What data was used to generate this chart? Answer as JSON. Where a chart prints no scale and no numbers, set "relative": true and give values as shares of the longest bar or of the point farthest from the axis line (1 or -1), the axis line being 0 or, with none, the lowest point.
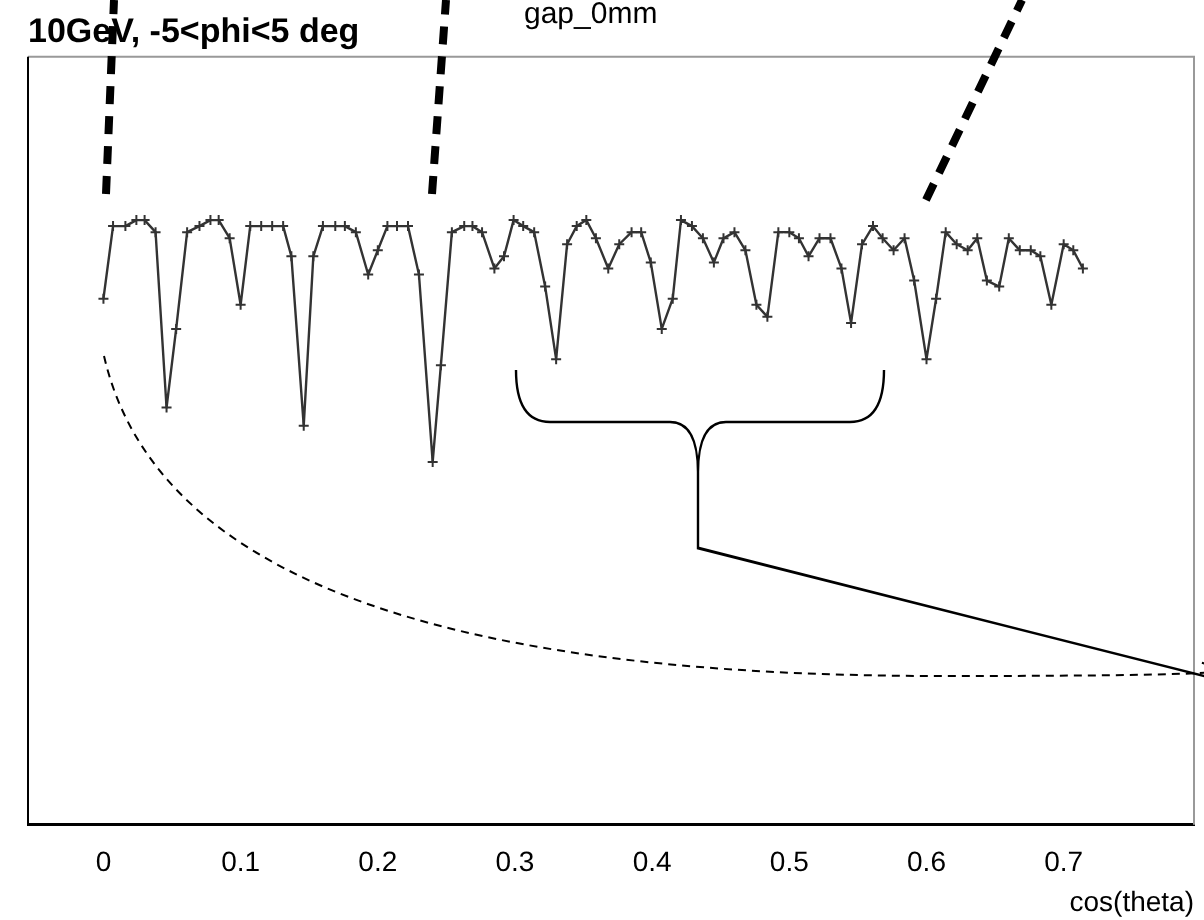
{
  "chart_data": {
    "type": "line",
    "title": "10GeV, -5<phi<5 deg",
    "xlabel": "cos(theta)",
    "relative": true,
    "annotations": [
      "gap_0mm"
    ],
    "xlim": [
      -0.055,
      0.795
    ],
    "xticks": [
      0,
      0.1,
      0.2,
      0.3,
      0.4,
      0.5,
      0.6,
      0.7
    ],
    "marker": "cross",
    "line_style": "solid",
    "legend": false,
    "grid": false,
    "series": [
      {
        "color": "#333333",
        "x": [
          0.0,
          0.007,
          0.016,
          0.024,
          0.03,
          0.038,
          0.046,
          0.053,
          0.061,
          0.07,
          0.078,
          0.084,
          0.092,
          0.1,
          0.107,
          0.115,
          0.123,
          0.131,
          0.137,
          0.146,
          0.153,
          0.16,
          0.169,
          0.176,
          0.184,
          0.193,
          0.2,
          0.207,
          0.214,
          0.222,
          0.23,
          0.24,
          0.246,
          0.254,
          0.263,
          0.269,
          0.276,
          0.285,
          0.292,
          0.299,
          0.306,
          0.314,
          0.322,
          0.33,
          0.338,
          0.345,
          0.352,
          0.359,
          0.368,
          0.376,
          0.385,
          0.392,
          0.399,
          0.407,
          0.415,
          0.421,
          0.429,
          0.437,
          0.445,
          0.452,
          0.46,
          0.468,
          0.476,
          0.484,
          0.492,
          0.5,
          0.507,
          0.514,
          0.522,
          0.53,
          0.538,
          0.545,
          0.553,
          0.561,
          0.568,
          0.576,
          0.584,
          0.591,
          0.6,
          0.607,
          0.614,
          0.622,
          0.63,
          0.637,
          0.644,
          0.653,
          0.66,
          0.668,
          0.676,
          0.683,
          0.691,
          0.7,
          0.707,
          0.714
        ],
        "values": [
          0.87,
          0.99,
          0.99,
          1.0,
          1.0,
          0.98,
          0.69,
          0.82,
          0.98,
          0.99,
          1.0,
          1.0,
          0.97,
          0.86,
          0.99,
          0.99,
          0.99,
          0.99,
          0.94,
          0.66,
          0.94,
          0.99,
          0.99,
          0.99,
          0.98,
          0.91,
          0.95,
          0.99,
          0.99,
          0.99,
          0.91,
          0.6,
          0.76,
          0.98,
          0.99,
          0.99,
          0.98,
          0.92,
          0.94,
          1.0,
          0.99,
          0.98,
          0.89,
          0.77,
          0.96,
          0.99,
          1.0,
          0.97,
          0.92,
          0.96,
          0.98,
          0.98,
          0.93,
          0.82,
          0.87,
          1.0,
          0.99,
          0.97,
          0.93,
          0.97,
          0.98,
          0.95,
          0.86,
          0.84,
          0.98,
          0.98,
          0.97,
          0.94,
          0.97,
          0.97,
          0.92,
          0.83,
          0.96,
          0.99,
          0.97,
          0.95,
          0.97,
          0.9,
          0.77,
          0.87,
          0.98,
          0.96,
          0.95,
          0.97,
          0.9,
          0.89,
          0.97,
          0.95,
          0.95,
          0.94,
          0.86,
          0.96,
          0.95,
          0.92
        ]
      }
    ]
  }
}
